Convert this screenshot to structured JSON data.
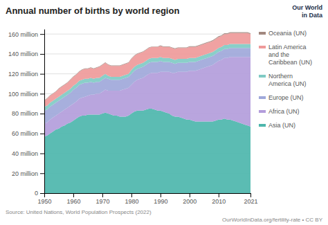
{
  "chart_data": {
    "type": "area",
    "stacked": true,
    "title": "Annual number of births by world region",
    "x": [
      1950,
      1951,
      1952,
      1953,
      1954,
      1955,
      1956,
      1957,
      1958,
      1959,
      1960,
      1961,
      1962,
      1963,
      1964,
      1965,
      1966,
      1967,
      1968,
      1969,
      1970,
      1971,
      1972,
      1973,
      1974,
      1975,
      1976,
      1977,
      1978,
      1979,
      1980,
      1981,
      1982,
      1983,
      1984,
      1985,
      1986,
      1987,
      1988,
      1989,
      1990,
      1991,
      1992,
      1993,
      1994,
      1995,
      1996,
      1997,
      1998,
      1999,
      2000,
      2001,
      2002,
      2003,
      2004,
      2005,
      2006,
      2007,
      2008,
      2009,
      2010,
      2011,
      2012,
      2013,
      2014,
      2015,
      2016,
      2017,
      2018,
      2019,
      2020,
      2021
    ],
    "series": [
      {
        "name": "Asia (UN)",
        "color": "#4db6ac",
        "values": [
          57,
          58,
          60,
          62,
          64,
          65,
          67,
          68,
          70,
          71,
          73,
          75,
          77,
          78,
          78,
          79,
          79,
          79,
          79,
          79,
          80,
          81,
          80,
          79,
          78,
          78,
          77,
          77,
          77,
          78,
          80,
          82,
          83,
          83,
          83,
          84,
          85,
          85,
          84,
          83,
          83,
          82,
          81,
          80,
          78,
          77,
          77,
          76,
          75,
          74,
          74,
          73,
          72,
          72,
          72,
          72,
          72,
          72,
          72,
          73,
          74,
          74,
          75,
          74,
          74,
          73,
          72,
          71,
          70,
          69,
          68,
          67
        ]
      },
      {
        "name": "Africa (UN)",
        "color": "#b39ddb",
        "values": [
          13,
          13,
          14,
          14,
          14,
          15,
          15,
          16,
          16,
          17,
          17,
          17,
          18,
          18,
          19,
          19,
          20,
          20,
          21,
          21,
          22,
          23,
          23,
          24,
          25,
          25,
          26,
          27,
          28,
          28,
          29,
          30,
          31,
          32,
          33,
          34,
          35,
          36,
          37,
          38,
          39,
          40,
          41,
          42,
          43,
          44,
          45,
          46,
          47,
          48,
          49,
          50,
          51,
          52,
          53,
          54,
          55,
          56,
          57,
          58,
          59,
          60,
          61,
          62,
          63,
          64,
          65,
          66,
          67,
          68,
          69,
          70
        ]
      },
      {
        "name": "Europe (UN)",
        "color": "#9fa8da",
        "values": [
          13,
          13,
          13,
          13,
          13,
          13,
          13,
          13,
          13,
          13,
          14,
          14,
          14,
          14,
          14,
          13,
          13,
          12,
          12,
          12,
          12,
          12,
          12,
          11,
          11,
          11,
          11,
          11,
          11,
          11,
          11,
          11,
          11,
          11,
          11,
          11,
          11,
          11,
          11,
          11,
          11,
          10,
          10,
          10,
          10,
          9,
          9,
          9,
          9,
          9,
          9,
          9,
          9,
          9,
          9,
          9,
          9,
          9,
          9,
          9,
          9,
          9,
          9,
          9,
          9,
          9,
          9,
          9,
          9,
          9,
          9,
          9
        ]
      },
      {
        "name": "Northern\nAmerica (UN)",
        "color": "#80cbc4",
        "values": [
          4,
          4,
          4,
          4,
          4,
          4,
          4,
          4,
          4,
          4,
          4,
          4,
          4,
          4,
          4,
          4,
          4,
          4,
          4,
          4,
          4,
          4,
          3,
          3,
          3,
          3,
          3,
          3,
          3,
          3,
          4,
          4,
          4,
          4,
          4,
          4,
          4,
          4,
          4,
          4,
          4,
          4,
          4,
          4,
          4,
          4,
          4,
          4,
          4,
          4,
          4,
          4,
          4,
          4,
          4,
          4,
          4,
          4,
          4,
          4,
          4,
          4,
          4,
          4,
          4,
          4,
          4,
          4,
          4,
          4,
          4,
          4
        ]
      },
      {
        "name": "Latin America\nand the\nCaribbean (UN)",
        "color": "#ef9a9a",
        "values": [
          6,
          7,
          7,
          7,
          7,
          8,
          8,
          8,
          8,
          9,
          9,
          9,
          9,
          10,
          10,
          10,
          10,
          10,
          10,
          11,
          11,
          11,
          11,
          11,
          11,
          11,
          11,
          11,
          11,
          11,
          11,
          11,
          11,
          11,
          11,
          11,
          11,
          11,
          11,
          11,
          11,
          11,
          11,
          11,
          11,
          11,
          11,
          11,
          11,
          11,
          11,
          11,
          11,
          11,
          11,
          11,
          11,
          11,
          11,
          11,
          11,
          11,
          11,
          11,
          11,
          11,
          11,
          11,
          11,
          11,
          11,
          10
        ]
      },
      {
        "name": "Oceania (UN)",
        "color": "#a1887f",
        "values": [
          0.5,
          0.5,
          0.5,
          0.5,
          0.5,
          0.5,
          0.5,
          0.5,
          0.5,
          0.5,
          0.5,
          0.5,
          0.5,
          0.5,
          0.5,
          0.5,
          0.5,
          0.5,
          0.5,
          0.5,
          0.5,
          0.5,
          0.5,
          0.5,
          0.5,
          0.5,
          0.5,
          0.5,
          0.5,
          0.5,
          0.5,
          0.5,
          0.5,
          0.5,
          0.5,
          0.5,
          0.5,
          0.5,
          0.5,
          0.5,
          0.6,
          0.6,
          0.6,
          0.6,
          0.6,
          0.6,
          0.6,
          0.6,
          0.6,
          0.6,
          0.7,
          0.7,
          0.7,
          0.7,
          0.7,
          0.7,
          0.7,
          0.7,
          0.8,
          0.8,
          0.8,
          0.8,
          0.8,
          0.8,
          0.8,
          0.8,
          0.8,
          0.8,
          0.9,
          0.9,
          0.9,
          0.9
        ]
      }
    ],
    "xlim": [
      1950,
      2021
    ],
    "xticks": [
      1950,
      1960,
      1970,
      1980,
      1990,
      2000,
      2010,
      2021
    ],
    "ylim": [
      0,
      165
    ],
    "yticks": [
      0,
      {
        "value": 20,
        "label": "20 million"
      },
      {
        "value": 40,
        "label": "40 million"
      },
      {
        "value": 60,
        "label": "60 million"
      },
      {
        "value": 80,
        "label": "80 million"
      },
      {
        "value": 100,
        "label": "100 million"
      },
      {
        "value": 120,
        "label": "120 million"
      },
      {
        "value": 140,
        "label": "140 million"
      },
      {
        "value": 160,
        "label": "160 million"
      }
    ],
    "grid": true,
    "legend": "right",
    "annotations": [
      "Source: United Nations, World Population Prospects (2022)",
      "OurWorldInData.org/fertility-rate • CC BY",
      "Our World\nin Data"
    ]
  }
}
